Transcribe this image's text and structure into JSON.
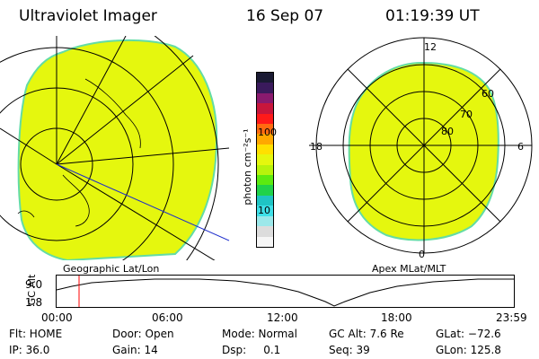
{
  "header": {
    "title": "Ultraviolet Imager",
    "date": "16 Sep 07",
    "time": "01:19:39 UT"
  },
  "left_panel": {
    "caption": "Geographic Lat/Lon",
    "fill_color": "#e5f70e",
    "edge_color": "#63dca5"
  },
  "right_panel": {
    "caption": "Apex  MLat/MLT",
    "mlt_labels": {
      "top": "12",
      "bottom": "0",
      "left": "18",
      "right": "6"
    },
    "lat_labels": [
      "60",
      "70",
      "80"
    ],
    "fill_color": "#e5f70e",
    "edge_color": "#63dca5"
  },
  "colorbar": {
    "unit_label": "photon cm⁻²s⁻¹",
    "tick_labels": [
      "100",
      "10"
    ],
    "colors": [
      "#1a1a33",
      "#3a1a5c",
      "#8a1a6e",
      "#c8163c",
      "#ff1a1a",
      "#ff6a10",
      "#ffa800",
      "#ffe000",
      "#e5f70e",
      "#b7f30c",
      "#5cea10",
      "#20d24a",
      "#1fc4c4",
      "#3fe0e8",
      "#9ce8ea",
      "#dcdcdc",
      "#f6f6f6"
    ]
  },
  "altitude_plot": {
    "ylabel": "GC Alt",
    "y_ticks": [
      "9.0",
      "1.8"
    ],
    "x_ticks": [
      "00:00",
      "06:00",
      "12:00",
      "18:00",
      "23:59"
    ],
    "current_time_marker": "01:19",
    "marker_color": "#ff0000"
  },
  "info": {
    "row1": {
      "flt": "Flt: HOME",
      "door": "Door: Open",
      "mode": "Mode: Normal",
      "gcalt": "GC Alt: 7.6 Re",
      "glat": "GLat: −72.6"
    },
    "row2": {
      "ip": "IP: 36.0",
      "gain": "Gain: 14",
      "dsp": "Dsp:     0.1",
      "seq": "Seq: 39",
      "glon": "GLon: 125.8"
    }
  }
}
